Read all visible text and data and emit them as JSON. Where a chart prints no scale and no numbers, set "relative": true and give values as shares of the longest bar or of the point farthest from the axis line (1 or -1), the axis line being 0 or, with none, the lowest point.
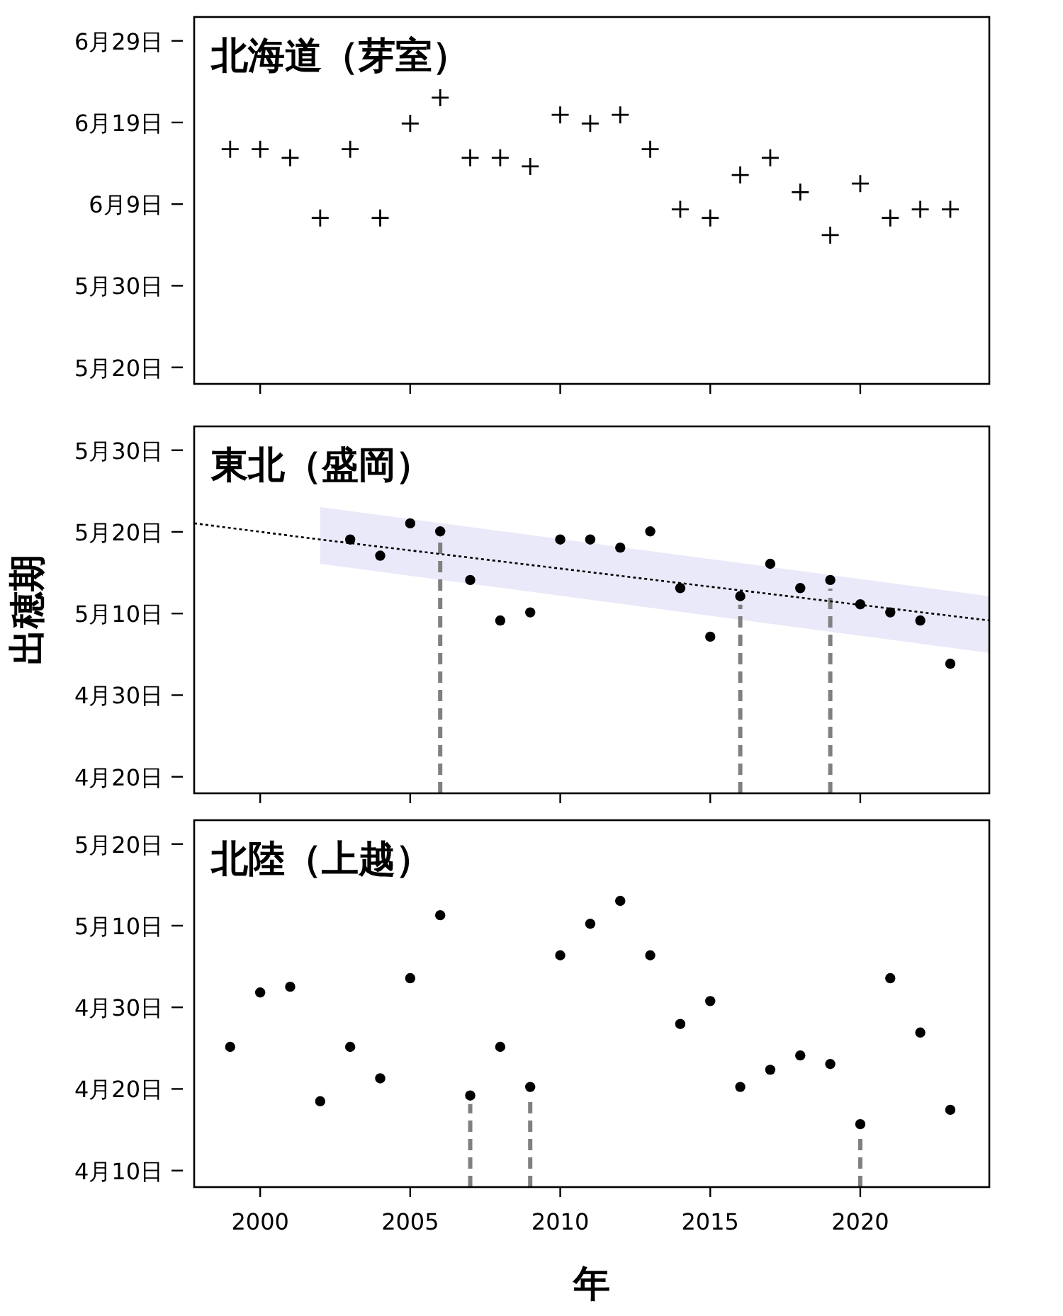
{
  "chart_data": [
    {
      "type": "scatter",
      "title": "北海道（芽室）",
      "marker": "cross",
      "tick_labels": "y",
      "relative": true,
      "x": [
        1999,
        2000,
        2001,
        2002,
        2003,
        2004,
        2005,
        2006,
        2007,
        2008,
        2009,
        2010,
        2011,
        2012,
        2013,
        2014,
        2015,
        2016,
        2017,
        2018,
        2019,
        2020,
        2021,
        2022,
        2023
      ],
      "series": [
        {
          "color": "#000000",
          "values": [
            0.82,
            0.82,
            0.79,
            0.58,
            0.82,
            0.58,
            0.91,
            1,
            0.79,
            0.79,
            0.76,
            0.94,
            0.91,
            0.94,
            0.82,
            0.61,
            0.58,
            0.73,
            0.79,
            0.67,
            0.52,
            0.7,
            0.58,
            0.61,
            0.61
          ]
        }
      ],
      "xlim": [
        1997.8,
        2024.3
      ],
      "xticks": [
        2000,
        2005,
        2010,
        2015,
        2020
      ],
      "annotations": [
        "5月20日",
        "5月30日",
        "6月9日",
        "6月19日",
        "6月29日"
      ]
    },
    {
      "type": "scatter",
      "title": "東北（盛岡）",
      "ylabel": "出穂期",
      "marker": "circle",
      "tick_labels": "y",
      "relative": true,
      "series": [
        {
          "color": "#000000",
          "x": [
            2003,
            2004,
            2005,
            2006,
            2007,
            2008,
            2009,
            2010,
            2011,
            2012,
            2013,
            2014,
            2015,
            2016,
            2017,
            2018,
            2019,
            2020,
            2021,
            2022,
            2023
          ],
          "values": [
            0.94,
            0.88,
            1,
            0.97,
            0.79,
            0.64,
            0.67,
            0.94,
            0.94,
            0.91,
            0.97,
            0.76,
            0.58,
            0.73,
            0.85,
            0.76,
            0.79,
            0.7,
            0.67,
            0.64,
            0.48
          ]
        },
        {
          "type": "line",
          "color": "#000000",
          "line_style": "dotted",
          "marker": "none",
          "x": [
            1997.8,
            2002,
            2024.3
          ],
          "values": [
            1,
            0.94,
            0.64
          ],
          "lower": [
            null,
            0.85,
            0.52
          ],
          "upper": [
            null,
            1.06,
            0.73
          ]
        }
      ],
      "ref_lines": [
        {
          "axis": "x",
          "value": 2006,
          "color": "#808080",
          "line_style": "dashed"
        },
        {
          "axis": "x",
          "value": 2016,
          "color": "#808080",
          "line_style": "dashed"
        },
        {
          "axis": "x",
          "value": 2019,
          "color": "#808080",
          "line_style": "dashed"
        }
      ],
      "xlim": [
        1997.8,
        2024.3
      ],
      "xticks": [
        2000,
        2005,
        2010,
        2015,
        2020
      ],
      "annotations": [
        "4月20日",
        "4月30日",
        "5月10日",
        "5月20日",
        "5月30日"
      ]
    },
    {
      "type": "scatter",
      "title": "北陸（上越）",
      "xlabel": "年",
      "marker": "circle",
      "relative": true,
      "x": [
        1999,
        2000,
        2001,
        2002,
        2003,
        2004,
        2005,
        2006,
        2007,
        2008,
        2009,
        2010,
        2011,
        2012,
        2013,
        2014,
        2015,
        2016,
        2017,
        2018,
        2019,
        2020,
        2021,
        2022,
        2023
      ],
      "series": [
        {
          "color": "#000000",
          "values": [
            0.49,
            0.68,
            0.7,
            0.3,
            0.49,
            0.38,
            0.73,
            0.95,
            0.32,
            0.49,
            0.35,
            0.81,
            0.92,
            1,
            0.81,
            0.57,
            0.65,
            0.35,
            0.41,
            0.46,
            0.43,
            0.22,
            0.73,
            0.54,
            0.27
          ]
        }
      ],
      "ref_lines": [
        {
          "axis": "x",
          "value": 2007,
          "color": "#808080",
          "line_style": "dashed"
        },
        {
          "axis": "x",
          "value": 2009,
          "color": "#808080",
          "line_style": "dashed"
        },
        {
          "axis": "x",
          "value": 2020,
          "color": "#808080",
          "line_style": "dashed"
        }
      ],
      "xlim": [
        1997.8,
        2024.3
      ],
      "xticks": [
        2000,
        2005,
        2010,
        2015,
        2020
      ],
      "annotations": [
        "4月10日",
        "4月20日",
        "4月30日",
        "5月10日",
        "5月20日"
      ]
    }
  ]
}
